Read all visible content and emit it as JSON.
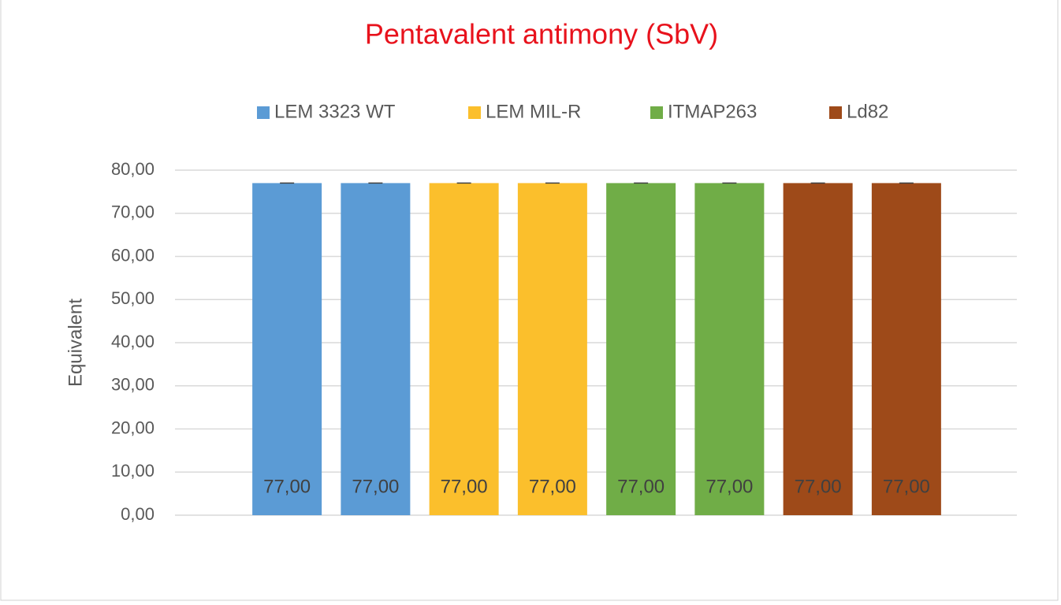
{
  "chart_data": {
    "type": "bar",
    "title": "Pentavalent antimony (SbV)",
    "y_label": "Equivalent",
    "categories": [
      null,
      null,
      null,
      null,
      null,
      null,
      null,
      null
    ],
    "series": [
      {
        "name": "LEM 3323 WT",
        "color": "#5b9bd5",
        "values": [
          77,
          77,
          null,
          null,
          null,
          null,
          null,
          null
        ],
        "value_labels": [
          "77,00",
          "77,00",
          null,
          null,
          null,
          null,
          null,
          null
        ],
        "errors": [
          0,
          0,
          null,
          null,
          null,
          null,
          null,
          null
        ]
      },
      {
        "name": "LEM MIL-R",
        "color": "#fbbf2c",
        "values": [
          null,
          null,
          77,
          77,
          null,
          null,
          null,
          null
        ],
        "value_labels": [
          null,
          null,
          "77,00",
          "77,00",
          null,
          null,
          null,
          null
        ],
        "errors": [
          null,
          null,
          0,
          0,
          null,
          null,
          null,
          null
        ]
      },
      {
        "name": "ITMAP263",
        "color": "#70ad47",
        "values": [
          null,
          null,
          null,
          null,
          77,
          77,
          null,
          null
        ],
        "value_labels": [
          null,
          null,
          null,
          null,
          "77,00",
          "77,00",
          null,
          null
        ],
        "errors": [
          null,
          null,
          null,
          null,
          0,
          0,
          null,
          null
        ]
      },
      {
        "name": "Ld82",
        "color": "#9e4a19",
        "values": [
          null,
          null,
          null,
          null,
          null,
          null,
          77,
          77
        ],
        "value_labels": [
          null,
          null,
          null,
          null,
          null,
          null,
          "77,00",
          "77,00"
        ],
        "errors": [
          null,
          null,
          null,
          null,
          null,
          null,
          0,
          0
        ]
      }
    ],
    "ylim": [
      0,
      80
    ],
    "yticks": [
      {
        "value": 0,
        "label": "0,00"
      },
      {
        "value": 10,
        "label": "10,00"
      },
      {
        "value": 20,
        "label": "20,00"
      },
      {
        "value": 30,
        "label": "30,00"
      },
      {
        "value": 40,
        "label": "40,00"
      },
      {
        "value": 50,
        "label": "50,00"
      },
      {
        "value": 60,
        "label": "60,00"
      },
      {
        "value": 70,
        "label": "70,00"
      },
      {
        "value": 80,
        "label": "80,00"
      }
    ],
    "grid": true,
    "legend": "top",
    "title_color": "#e8121c"
  }
}
